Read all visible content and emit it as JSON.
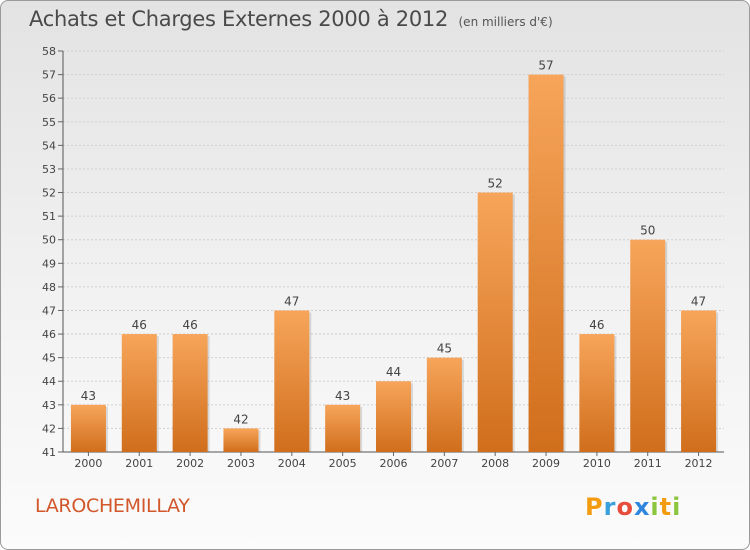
{
  "header": {
    "title": "Achats et Charges Externes 2000 à 2012",
    "subtitle": "(en milliers d'€)"
  },
  "footer": {
    "place": "LAROCHEMILLAY",
    "logo_letters": [
      {
        "char": "P",
        "color": "#f39c12"
      },
      {
        "char": "r",
        "color": "#3aa0db"
      },
      {
        "char": "o",
        "color": "#e74c3c"
      },
      {
        "char": "x",
        "color": "#2e86de"
      },
      {
        "char": "i",
        "color": "#8cc63f"
      },
      {
        "char": "t",
        "color": "#f39c12"
      },
      {
        "char": "i",
        "color": "#8cc63f"
      }
    ]
  },
  "colors": {
    "bar_light": "#f7a55a",
    "bar_dark": "#d06e1c",
    "grid": "#cfcfcf",
    "place": "#d2572a"
  },
  "chart_data": {
    "type": "bar",
    "title": "Achats et Charges Externes 2000 à 2012",
    "subtitle": "(en milliers d'€)",
    "xlabel": "",
    "ylabel": "",
    "categories": [
      "2000",
      "2001",
      "2002",
      "2003",
      "2004",
      "2005",
      "2006",
      "2007",
      "2008",
      "2009",
      "2010",
      "2011",
      "2012"
    ],
    "values": [
      43,
      46,
      46,
      42,
      47,
      43,
      44,
      45,
      52,
      57,
      46,
      50,
      47
    ],
    "ylim": [
      41,
      58
    ],
    "yticks": [
      41,
      42,
      43,
      44,
      45,
      46,
      47,
      48,
      49,
      50,
      51,
      52,
      53,
      54,
      55,
      56,
      57,
      58
    ],
    "grid": true,
    "data_labels": true
  }
}
